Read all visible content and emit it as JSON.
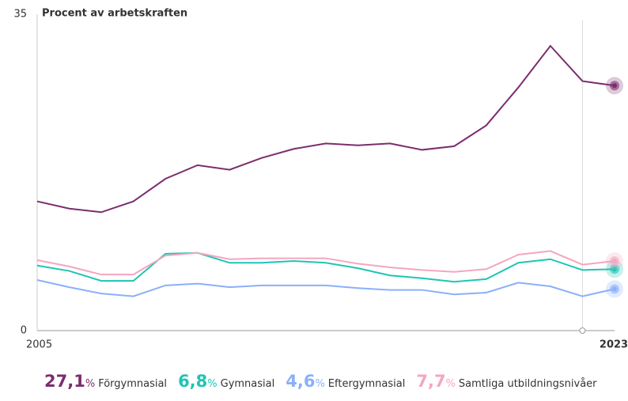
{
  "chart_data": {
    "type": "line",
    "ylabel": "Procent av arbetskraften",
    "unit": "%",
    "x": [
      2005,
      2006,
      2007,
      2008,
      2009,
      2010,
      2011,
      2012,
      2013,
      2014,
      2015,
      2016,
      2017,
      2018,
      2019,
      2020,
      2021,
      2022,
      2023
    ],
    "xlim": [
      2005,
      2023
    ],
    "xticks": [
      2005,
      2023
    ],
    "ylim": [
      0,
      35
    ],
    "yticks": [
      0,
      35
    ],
    "series": [
      {
        "name": "Förgymnasial",
        "color": "#7b2d6e",
        "values": [
          14.3,
          13.5,
          13.1,
          14.3,
          16.8,
          18.3,
          17.8,
          19.1,
          20.1,
          20.7,
          20.5,
          20.7,
          20.0,
          20.4,
          22.7,
          26.9,
          31.5,
          27.6,
          27.1
        ],
        "value_labels": [
          null,
          null,
          null,
          null,
          null,
          null,
          null,
          null,
          null,
          null,
          null,
          null,
          null,
          null,
          null,
          null,
          null,
          null,
          "27,1"
        ]
      },
      {
        "name": "Gymnasial",
        "color": "#1ec5b5",
        "values": [
          7.2,
          6.6,
          5.5,
          5.5,
          8.5,
          8.6,
          7.5,
          7.5,
          7.7,
          7.5,
          6.9,
          6.1,
          5.8,
          5.4,
          5.7,
          7.5,
          7.9,
          6.7,
          6.8
        ],
        "value_labels": [
          null,
          null,
          null,
          null,
          null,
          null,
          null,
          null,
          null,
          null,
          null,
          null,
          null,
          null,
          null,
          null,
          null,
          null,
          "6,8"
        ]
      },
      {
        "name": "Eftergymnasial",
        "color": "#8ab0f8",
        "values": [
          5.6,
          4.8,
          4.1,
          3.8,
          5.0,
          5.2,
          4.8,
          5.0,
          5.0,
          5.0,
          4.7,
          4.5,
          4.5,
          4.0,
          4.2,
          5.3,
          4.9,
          3.8,
          4.6
        ],
        "value_labels": [
          null,
          null,
          null,
          null,
          null,
          null,
          null,
          null,
          null,
          null,
          null,
          null,
          null,
          null,
          null,
          null,
          null,
          null,
          "4,6"
        ]
      },
      {
        "name": "Samtliga utbildningsnivåer",
        "color": "#f4a6c0",
        "values": [
          7.8,
          7.1,
          6.2,
          6.2,
          8.3,
          8.6,
          7.9,
          8.0,
          8.0,
          8.0,
          7.4,
          7.0,
          6.7,
          6.5,
          6.8,
          8.4,
          8.8,
          7.3,
          7.7
        ],
        "value_labels": [
          null,
          null,
          null,
          null,
          null,
          null,
          null,
          null,
          null,
          null,
          null,
          null,
          null,
          null,
          null,
          null,
          null,
          null,
          "7,7"
        ]
      }
    ]
  }
}
